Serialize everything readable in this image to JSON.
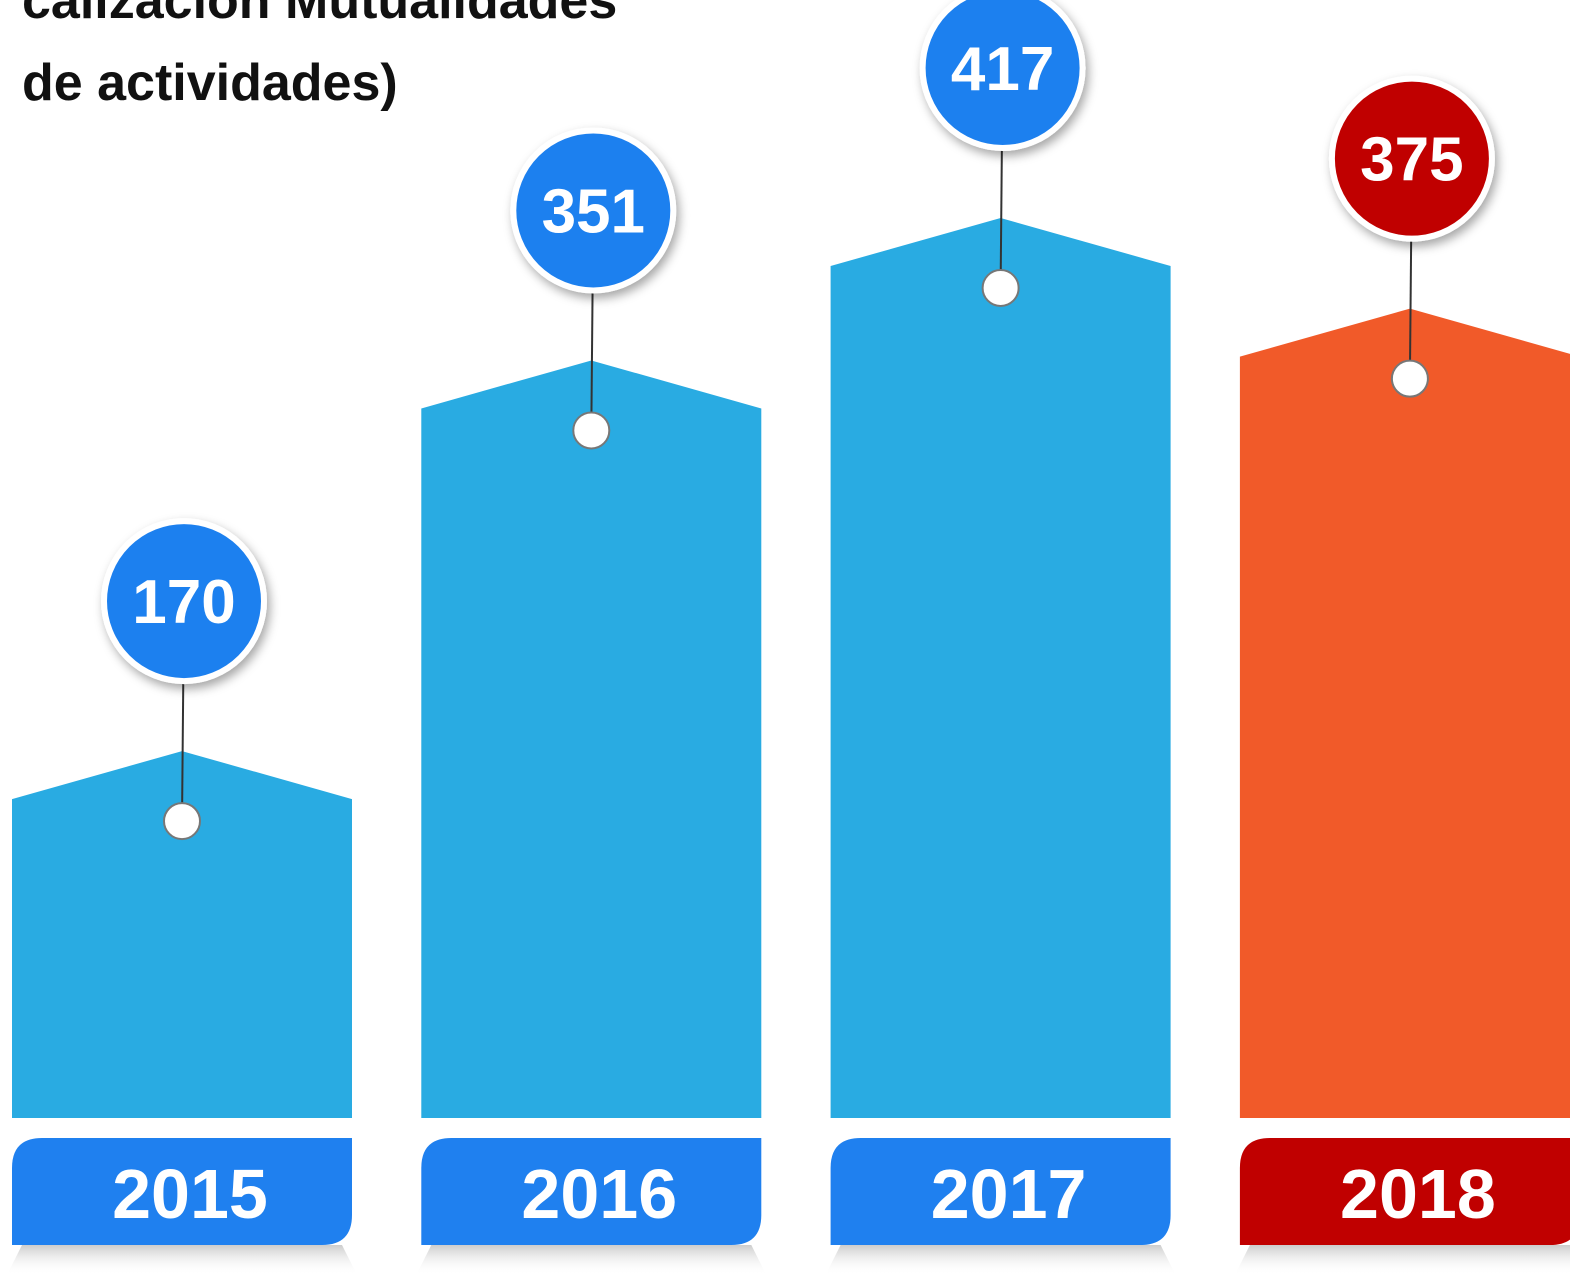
{
  "chart_data": {
    "type": "tagbar",
    "title_lines": [
      "calización Mutualidades",
      "de actividades)"
    ],
    "categories": [
      "2015",
      "2016",
      "2017",
      "2018"
    ],
    "values": [
      170,
      351,
      417,
      375
    ],
    "bar_colors": [
      "#29abe2",
      "#29abe2",
      "#29abe2",
      "#f15a29"
    ],
    "label_colors": [
      "#1f80ef",
      "#1f80ef",
      "#1f80ef",
      "#c00000"
    ]
  }
}
